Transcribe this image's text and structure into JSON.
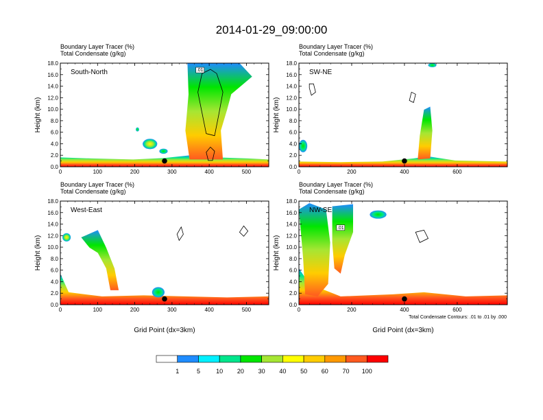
{
  "chart_data": {
    "type": "heatmap",
    "title": "2014-01-29_09:00:00",
    "panel_labels": [
      "Boundary Layer Tracer   (%)",
      "Total Condensate   (g/kg)"
    ],
    "y_label": "Height (km)",
    "x_label": "Grid Point (dx=3km)",
    "contour_note": "Total Condensate Contours: .01 to .01 by .000",
    "contour_value_label": ".01",
    "y_ticks": [
      "0.0",
      "2.0",
      "4.0",
      "6.0",
      "8.0",
      "10.0",
      "12.0",
      "14.0",
      "16.0",
      "18.0"
    ],
    "ylim": [
      0,
      18
    ],
    "colorbar": {
      "labels": [
        "1",
        "5",
        "10",
        "20",
        "30",
        "40",
        "50",
        "60",
        "70",
        "100"
      ],
      "colors": [
        "#ffffff",
        "#1f8cff",
        "#00f0ff",
        "#00e68c",
        "#00e600",
        "#a6e633",
        "#ffff00",
        "#ffcc00",
        "#ff9900",
        "#ff5a1f",
        "#ff0000"
      ]
    },
    "panels": [
      {
        "name": "South-North",
        "xlim": [
          0,
          560
        ],
        "x_ticks": [
          0,
          100,
          200,
          300,
          400,
          500
        ],
        "marker_x": 280,
        "marker_y": 1.0
      },
      {
        "name": "SW-NE",
        "xlim": [
          0,
          790
        ],
        "x_ticks": [
          0,
          200,
          400,
          600
        ],
        "marker_x": 400,
        "marker_y": 1.0
      },
      {
        "name": "West-East",
        "xlim": [
          0,
          560
        ],
        "x_ticks": [
          0,
          100,
          200,
          300,
          400,
          500
        ],
        "marker_x": 280,
        "marker_y": 1.0
      },
      {
        "name": "NW-SE",
        "xlim": [
          0,
          790
        ],
        "x_ticks": [
          0,
          200,
          400,
          600
        ],
        "marker_x": 400,
        "marker_y": 1.0
      }
    ]
  }
}
